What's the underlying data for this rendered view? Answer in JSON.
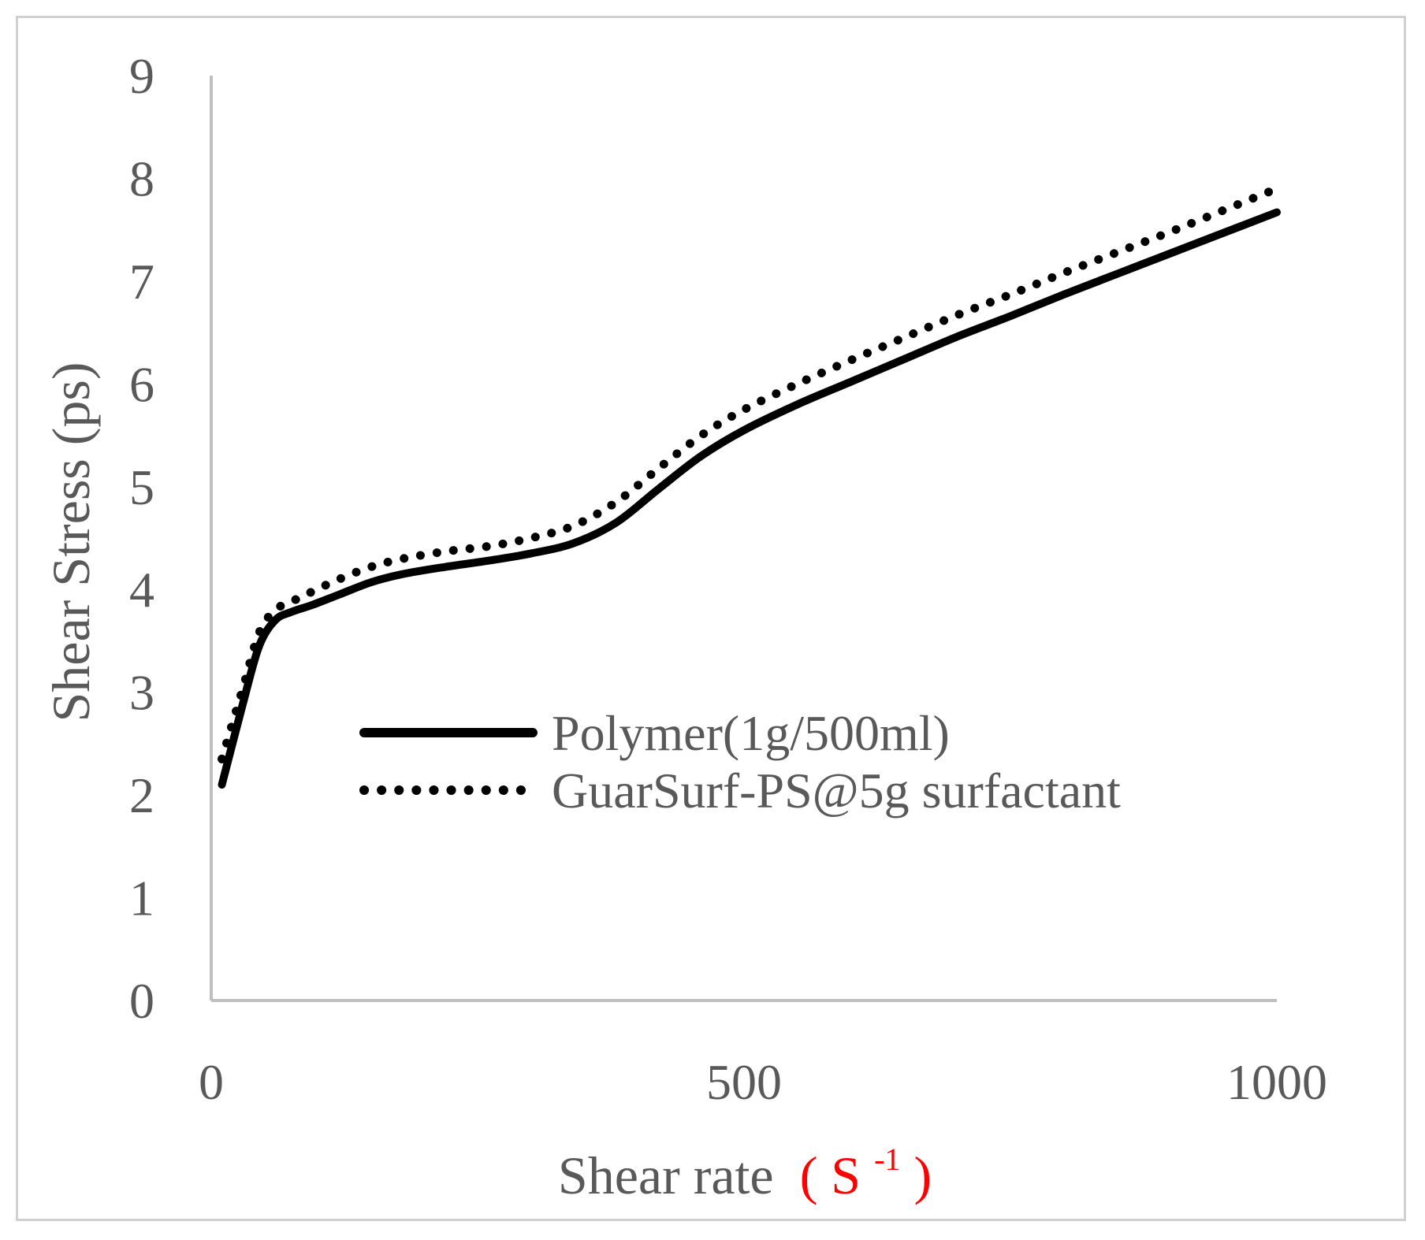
{
  "chart_data": {
    "type": "line",
    "title": "",
    "xlabel": "Shear rate",
    "xlabel_unit_base": "S",
    "xlabel_unit_exp": "-1",
    "xlabel_unit_open": "(",
    "xlabel_unit_close": ")",
    "xlabel_unit_color": "#ff0000",
    "ylabel": "Shear Stress (ps)",
    "xlim": [
      0,
      1000
    ],
    "ylim": [
      0,
      9
    ],
    "xticks": [
      "0",
      "500",
      "1000"
    ],
    "xtick_values": [
      0,
      500,
      1000
    ],
    "yticks": [
      "0",
      "1",
      "2",
      "3",
      "4",
      "5",
      "6",
      "7",
      "8",
      "9"
    ],
    "ytick_values": [
      0,
      1,
      2,
      3,
      4,
      5,
      6,
      7,
      8,
      9
    ],
    "grid": false,
    "legend_position": "center",
    "series": [
      {
        "name": "Polymer(1g/500ml)",
        "style": "solid",
        "color": "#000000",
        "x": [
          10,
          30,
          45,
          60,
          75,
          95,
          120,
          150,
          180,
          220,
          260,
          300,
          340,
          380,
          420,
          460,
          500,
          550,
          600,
          650,
          700,
          750,
          800,
          850,
          900,
          950,
          1000
        ],
        "y": [
          2.1,
          2.9,
          3.45,
          3.7,
          3.78,
          3.85,
          3.95,
          4.07,
          4.15,
          4.22,
          4.28,
          4.35,
          4.45,
          4.65,
          4.98,
          5.3,
          5.55,
          5.8,
          6.02,
          6.24,
          6.46,
          6.66,
          6.87,
          7.07,
          7.27,
          7.47,
          7.67
        ]
      },
      {
        "name": "GuarSurf-PS@5g surfactant",
        "style": "dotted",
        "color": "#000000",
        "x": [
          10,
          30,
          45,
          60,
          75,
          95,
          120,
          150,
          180,
          220,
          260,
          300,
          340,
          380,
          420,
          460,
          500,
          550,
          600,
          650,
          700,
          750,
          800,
          850,
          900,
          950,
          1000
        ],
        "y": [
          2.35,
          3.05,
          3.58,
          3.8,
          3.88,
          3.98,
          4.1,
          4.22,
          4.3,
          4.37,
          4.42,
          4.5,
          4.62,
          4.85,
          5.18,
          5.5,
          5.75,
          6.0,
          6.23,
          6.45,
          6.67,
          6.87,
          7.08,
          7.28,
          7.48,
          7.69,
          7.9
        ]
      }
    ]
  }
}
